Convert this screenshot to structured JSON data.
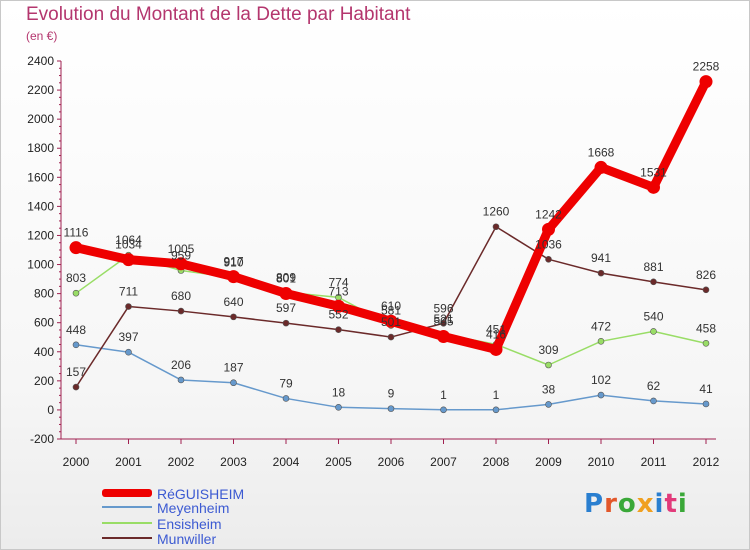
{
  "title": "Evolution du Montant de la Dette par Habitant",
  "subtitle": "(en €)",
  "logo_text": "Proxiti",
  "chart_data": {
    "type": "line",
    "x": [
      2000,
      2001,
      2002,
      2003,
      2004,
      2005,
      2006,
      2007,
      2008,
      2009,
      2010,
      2011,
      2012
    ],
    "ylim": [
      -200,
      2400
    ],
    "y_ticks": [
      -200,
      0,
      200,
      400,
      600,
      800,
      1000,
      1200,
      1400,
      1600,
      1800,
      2000,
      2200,
      2400
    ],
    "grid": false,
    "legend_position": "bottom-left",
    "series": [
      {
        "name": "RéGUISHEIM",
        "color": "#ee0000",
        "values": [
          1116,
          1034,
          1005,
          917,
          801,
          713,
          610,
          505,
          416,
          1242,
          1668,
          1531,
          2258
        ]
      },
      {
        "name": "Meyenheim",
        "color": "#6699cc",
        "values": [
          448,
          397,
          206,
          187,
          79,
          18,
          9,
          1,
          1,
          38,
          102,
          62,
          41
        ]
      },
      {
        "name": "Ensisheim",
        "color": "#99dd66",
        "values": [
          803,
          1064,
          959,
          910,
          809,
          774,
          581,
          521,
          451,
          309,
          472,
          540,
          458
        ]
      },
      {
        "name": "Munwiller",
        "color": "#6b2a2a",
        "values": [
          157,
          711,
          680,
          640,
          597,
          552,
          501,
          596,
          1260,
          1036,
          941,
          881,
          826
        ]
      }
    ]
  }
}
